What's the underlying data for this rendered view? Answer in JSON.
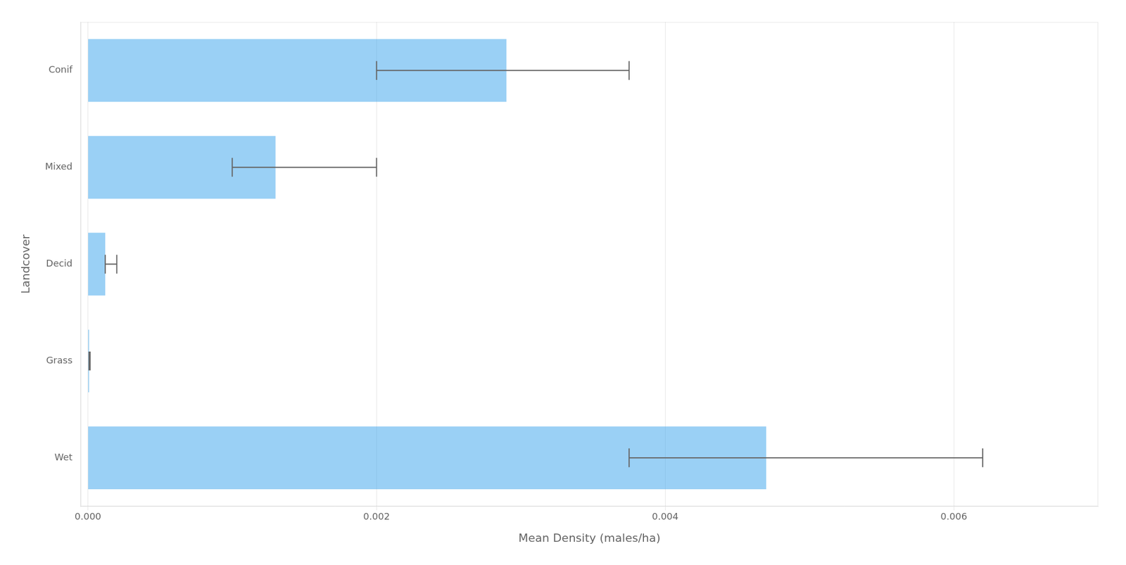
{
  "chart_data": {
    "type": "bar",
    "orientation": "horizontal",
    "categories": [
      "Conif",
      "Mixed",
      "Decid",
      "Grass",
      "Wet"
    ],
    "values": [
      0.0029,
      0.0013,
      0.00012,
      8e-06,
      0.0047
    ],
    "error_low": [
      0.002,
      0.001,
      0.00012,
      8e-06,
      0.00375
    ],
    "error_high": [
      0.00375,
      0.002,
      0.0002,
      1.5e-05,
      0.0062
    ],
    "xlabel": "Mean Density (males/ha)",
    "ylabel": "Landcover",
    "xlim": [
      -5e-05,
      0.007
    ],
    "xticks": [
      {
        "value": 0,
        "label": "0.000"
      },
      {
        "value": 0.002,
        "label": "0.002"
      },
      {
        "value": 0.004,
        "label": "0.004"
      },
      {
        "value": 0.006,
        "label": "0.006"
      }
    ],
    "grid": "x"
  }
}
